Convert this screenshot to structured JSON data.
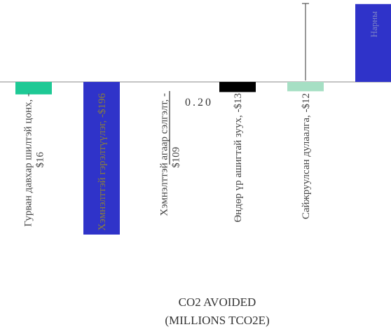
{
  "chart_data": {
    "type": "bar",
    "categories": [
      "Гурван давхар шилтэй цонх",
      "Хэмнэлттэй гэрэлтүүлэг",
      "Хэмнэлттэй агаар сэлгэлт",
      "Өндөр үр ашигтай зуух",
      "Сайжруулсан дулаалга",
      "Нарны"
    ],
    "labels": [
      [
        "Гурван давхар шилтэй цонх, -",
        "$16"
      ],
      [
        "Хэмнэлттэй гэрэлтүүлэг, -$196"
      ],
      [
        "Хэмнэлттэй агаар сэлгэлт, -",
        "$109"
      ],
      [
        "Өндөр үр ашигтай зуух, -$13"
      ],
      [
        "Сайжруулсан дулаалга, -$12"
      ],
      [
        "Нарны"
      ]
    ],
    "values": [
      -16,
      -196,
      -109,
      -13,
      -12,
      100
    ],
    "colors": [
      "#1ec995",
      "#2f33c9",
      "#ffffff",
      "#000000",
      "#a6dfc4",
      "#2f33c9"
    ],
    "error_bar_index": 4,
    "annotation": "0.20",
    "xlabel_line1": "CO2 AVOIDED",
    "xlabel_line2": "(MILLIONS TCO2E)",
    "baseline_color": "#8a8a8a"
  }
}
